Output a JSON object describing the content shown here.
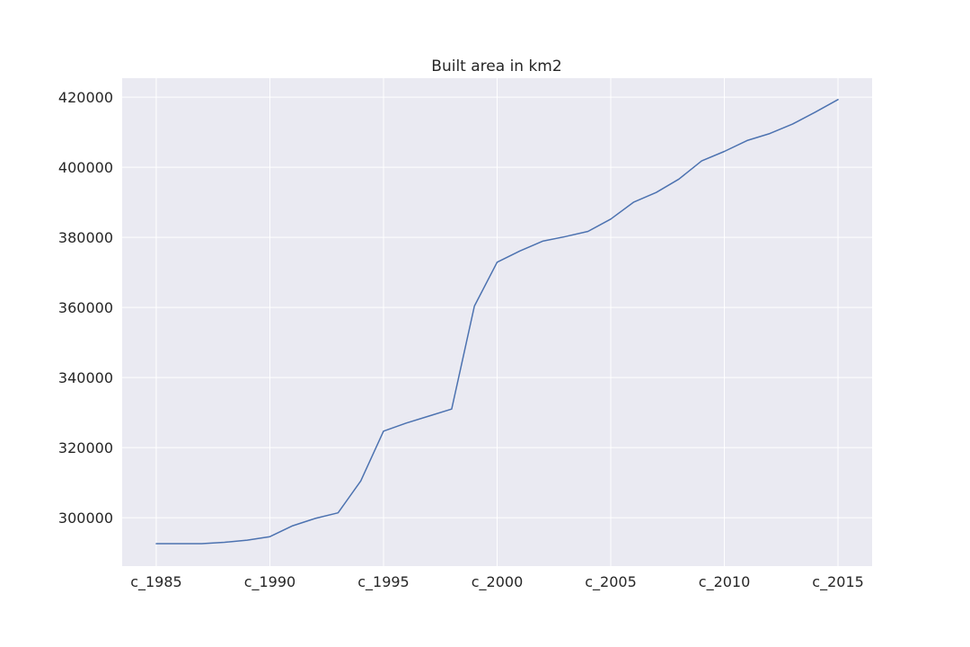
{
  "chart_data": {
    "type": "line",
    "title": "Built area in km2",
    "xlabel": "",
    "ylabel": "",
    "x": [
      1985,
      1986,
      1987,
      1988,
      1989,
      1990,
      1991,
      1992,
      1993,
      1994,
      1995,
      1996,
      1997,
      1998,
      1999,
      2000,
      2001,
      2002,
      2003,
      2004,
      2005,
      2006,
      2007,
      2008,
      2009,
      2010,
      2011,
      2012,
      2013,
      2014,
      2015
    ],
    "x_ticks": [
      1985,
      1990,
      1995,
      2000,
      2005,
      2010,
      2015
    ],
    "x_tick_labels": [
      "c_1985",
      "c_1990",
      "c_1995",
      "c_2000",
      "c_2005",
      "c_2010",
      "c_2015"
    ],
    "xlim": [
      1983.5,
      2016.5
    ],
    "y_ticks": [
      300000,
      320000,
      340000,
      360000,
      380000,
      400000,
      420000
    ],
    "y_tick_labels": [
      "300000",
      "320000",
      "340000",
      "360000",
      "380000",
      "400000",
      "420000"
    ],
    "ylim": [
      286200,
      425400
    ],
    "grid": true,
    "colors": {
      "background": "#eaeaf2",
      "grid": "#ffffff",
      "line": "#4c72b0"
    },
    "series": [
      {
        "values": [
          292600,
          292600,
          292600,
          293000,
          293600,
          294600,
          297700,
          299800,
          301400,
          310500,
          324700,
          327000,
          329000,
          331000,
          360400,
          372900,
          376100,
          378900,
          380200,
          381700,
          385200,
          390000,
          392800,
          396600,
          401800,
          404500,
          407600,
          409600,
          412300,
          415700,
          419300
        ]
      }
    ]
  }
}
